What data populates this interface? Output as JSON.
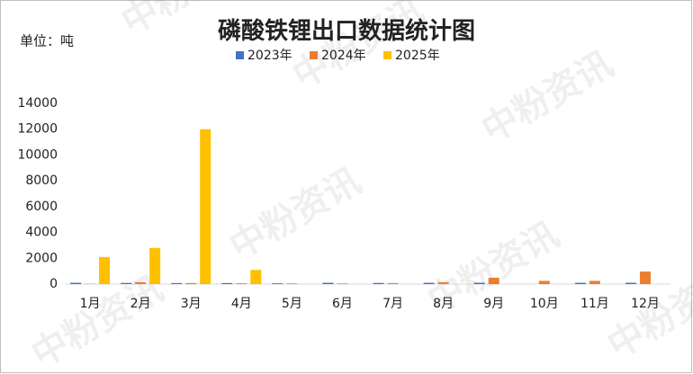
{
  "chart_data": {
    "type": "bar",
    "title": "磷酸铁锂出口数据统计图",
    "unit_label": "单位：吨",
    "watermark": "中粉资讯",
    "categories": [
      "1月",
      "2月",
      "3月",
      "4月",
      "5月",
      "6月",
      "7月",
      "8月",
      "9月",
      "10月",
      "11月",
      "12月"
    ],
    "series": [
      {
        "name": "2023年",
        "color": "#4472c4",
        "values": [
          100,
          90,
          80,
          80,
          60,
          100,
          90,
          100,
          100,
          null,
          100,
          100
        ]
      },
      {
        "name": "2024年",
        "color": "#ed7d31",
        "values": [
          20,
          150,
          80,
          60,
          50,
          50,
          80,
          150,
          490,
          250,
          250,
          970
        ]
      },
      {
        "name": "2025年",
        "color": "#ffc000",
        "values": [
          2100,
          2800,
          12000,
          1100,
          null,
          null,
          null,
          null,
          null,
          null,
          null,
          null
        ]
      }
    ],
    "ylim": [
      0,
      14000
    ],
    "yticks": [
      0,
      2000,
      4000,
      6000,
      8000,
      10000,
      12000,
      14000
    ],
    "grid": false,
    "legend": "top"
  }
}
